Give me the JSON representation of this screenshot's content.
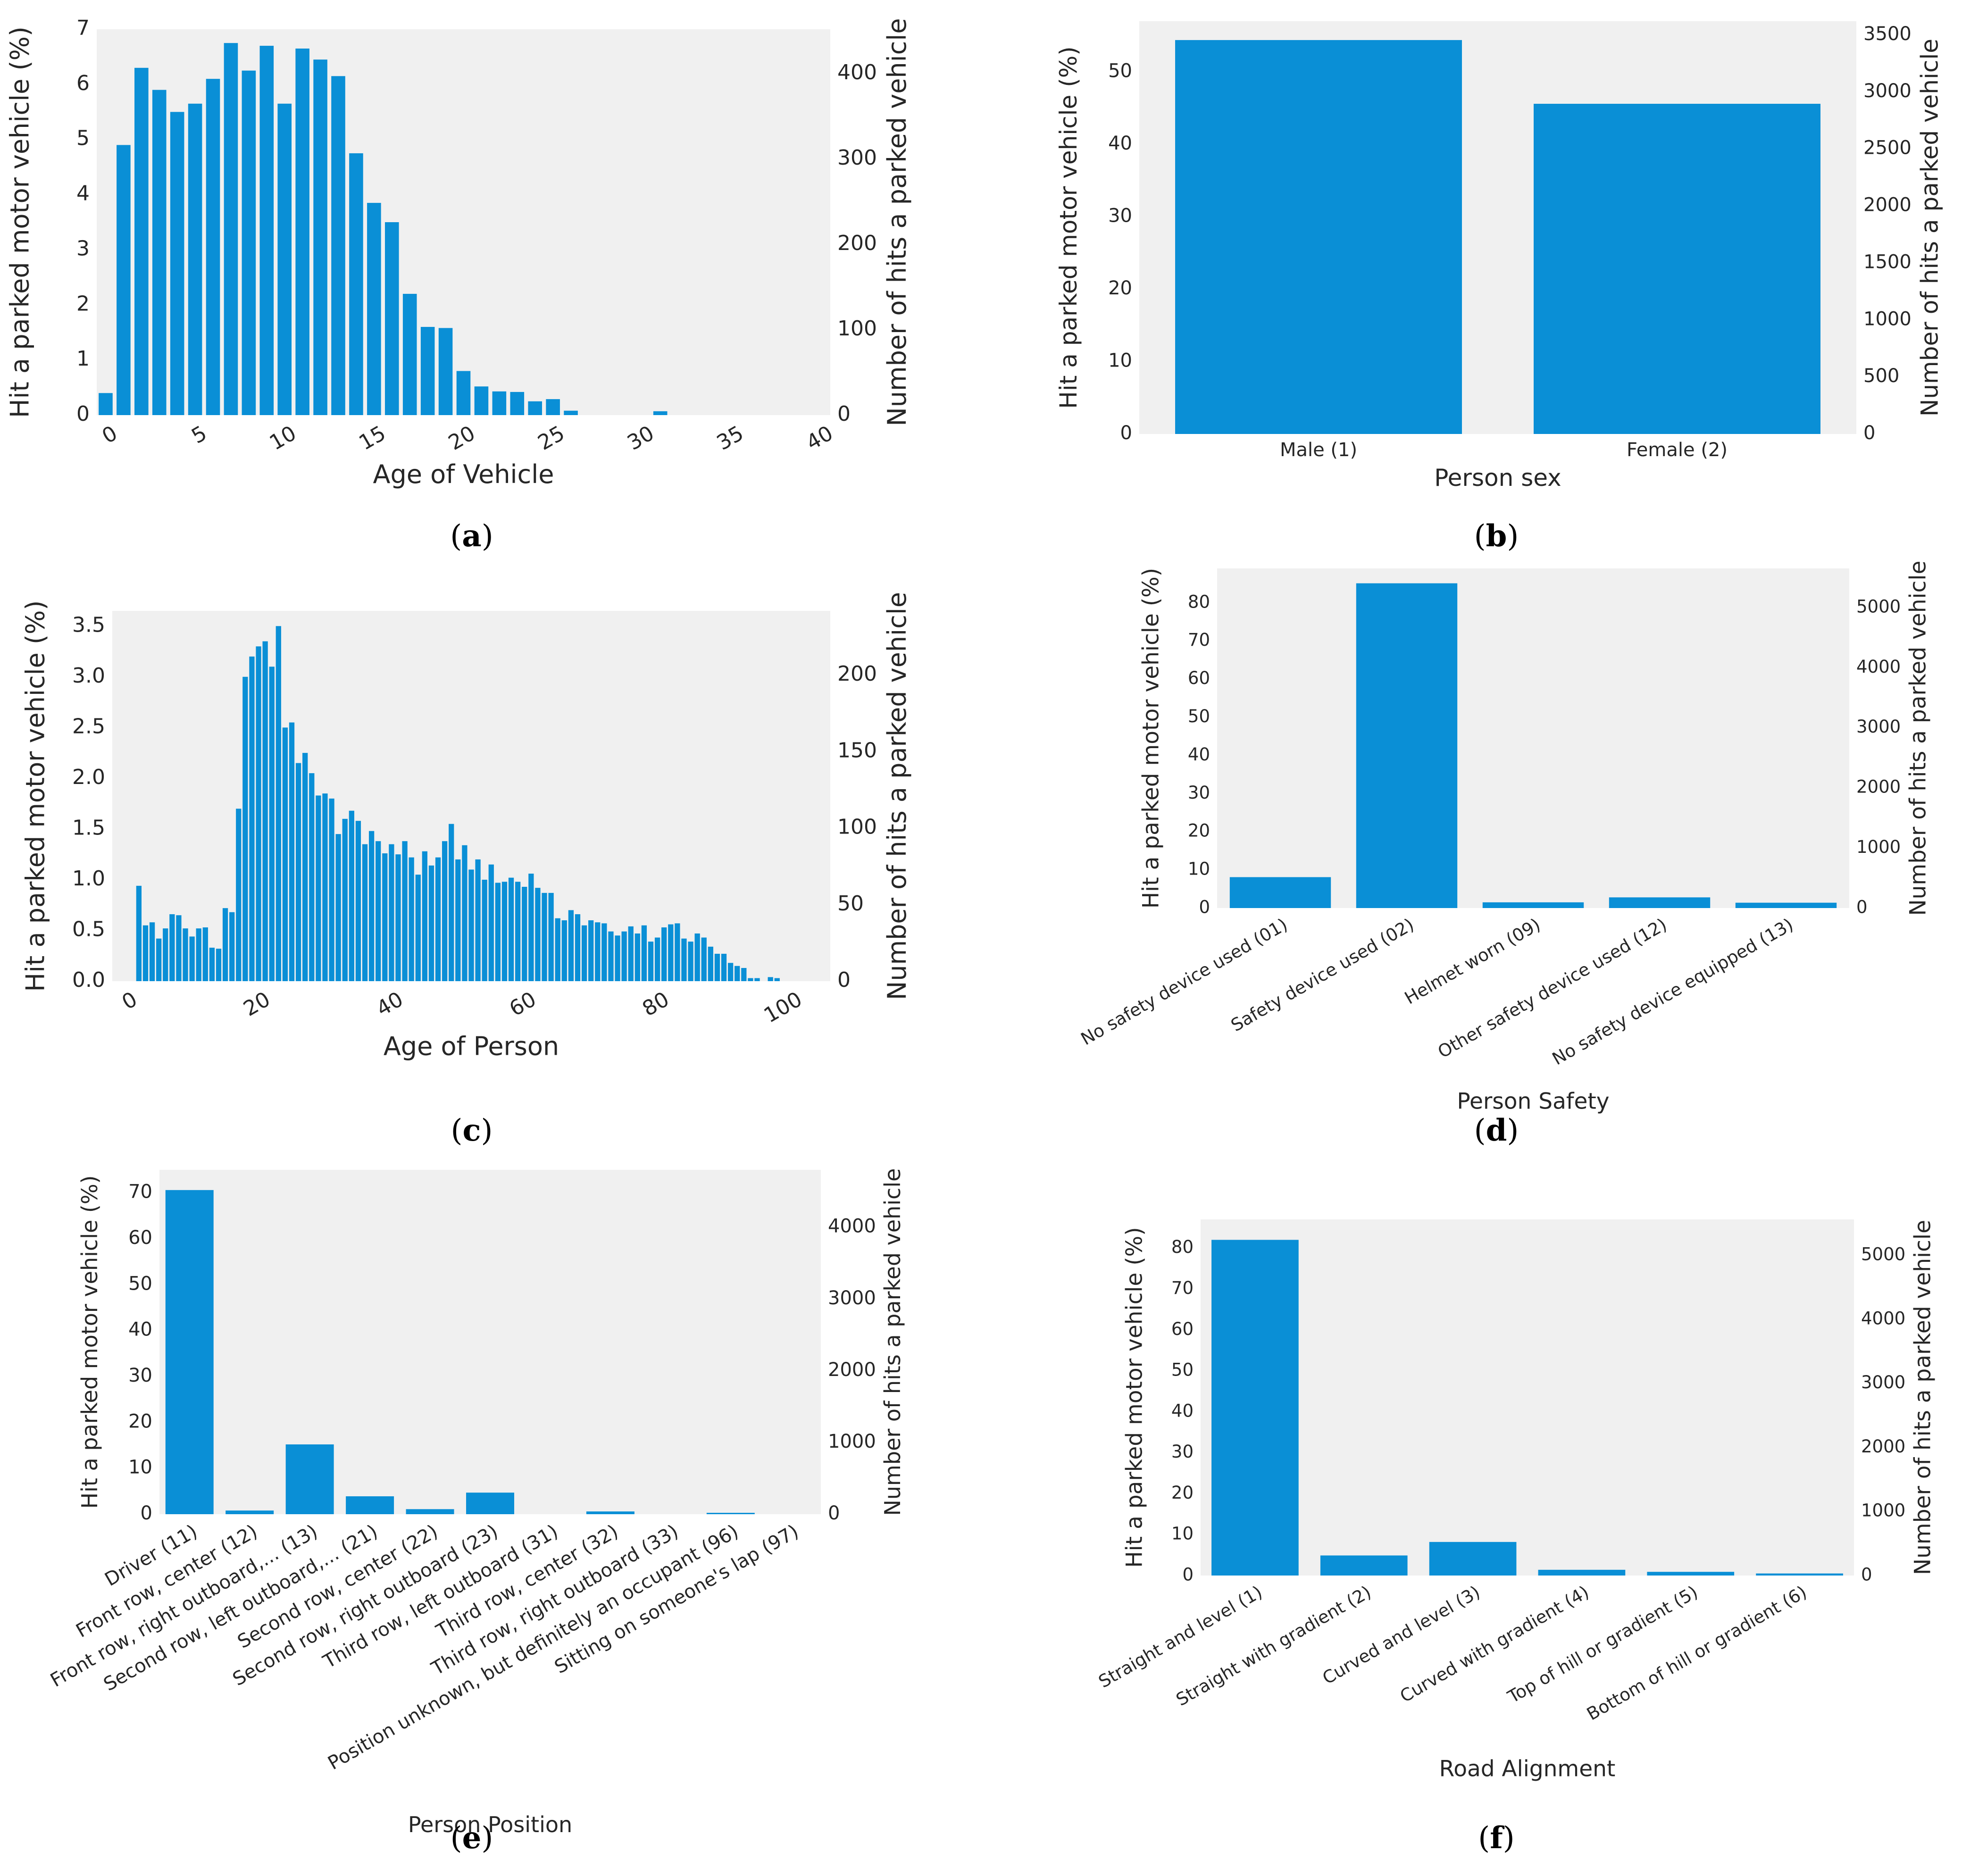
{
  "figure": {
    "bar_color": "#0a8fd6",
    "plot_bg": "#f0f0f0",
    "captions": [
      "a",
      "b",
      "c",
      "d",
      "e",
      "f"
    ]
  },
  "chart_data": [
    {
      "id": "a",
      "type": "bar",
      "xlabel": "Age of Vehicle",
      "ylabel_left": "Hit a parked motor vehicle (%)",
      "ylabel_right": "Number of hits a parked vehicle",
      "x": [
        0,
        1,
        2,
        3,
        4,
        5,
        6,
        7,
        8,
        9,
        10,
        11,
        12,
        13,
        14,
        15,
        16,
        17,
        18,
        19,
        20,
        21,
        22,
        23,
        24,
        25,
        26,
        27,
        28,
        29,
        30,
        31,
        32,
        33,
        34,
        35,
        36,
        37,
        38,
        39,
        40
      ],
      "values": [
        0.4,
        4.9,
        6.3,
        5.9,
        5.5,
        5.65,
        6.1,
        6.75,
        6.25,
        6.7,
        5.65,
        6.65,
        6.45,
        6.15,
        4.75,
        3.85,
        3.5,
        2.2,
        1.6,
        1.58,
        0.8,
        0.52,
        0.43,
        0.42,
        0.25,
        0.29,
        0.08,
        0,
        0,
        0,
        0,
        0.07,
        0,
        0,
        0,
        0,
        0,
        0,
        0,
        0,
        0
      ],
      "xlim": [
        -0.5,
        40.5
      ],
      "ylim": [
        0,
        7
      ],
      "yticks": [
        0,
        1,
        2,
        3,
        4,
        5,
        6,
        7
      ],
      "yticklabels": [
        "0",
        "1",
        "2",
        "3",
        "4",
        "5",
        "6",
        "7"
      ],
      "xticks": [
        0,
        5,
        10,
        15,
        20,
        25,
        30,
        35,
        40
      ],
      "xticklabels": [
        "0",
        "5",
        "10",
        "15",
        "20",
        "25",
        "30",
        "35",
        "40"
      ],
      "right_ticks": [
        0,
        100,
        200,
        300,
        400
      ],
      "right_ticklabels": [
        "0",
        "100",
        "200",
        "300",
        "400"
      ],
      "right_ylim": [
        0,
        452
      ],
      "x_rotation": 30
    },
    {
      "id": "b",
      "type": "bar",
      "xlabel": "Person sex",
      "ylabel_left": "Hit a parked motor vehicle (%)",
      "ylabel_right": "Number of hits a parked vehicle",
      "categories": [
        "Male (1)",
        "Female (2)"
      ],
      "values": [
        54.4,
        45.6
      ],
      "ylim": [
        0,
        57
      ],
      "yticks": [
        0,
        10,
        20,
        30,
        40,
        50
      ],
      "yticklabels": [
        "0",
        "10",
        "20",
        "30",
        "40",
        "50"
      ],
      "right_ticks": [
        0,
        500,
        1000,
        1500,
        2000,
        2500,
        3000,
        3500
      ],
      "right_ticklabels": [
        "0",
        "500",
        "1000",
        "1500",
        "2000",
        "2500",
        "3000",
        "3500"
      ],
      "right_ylim": [
        0,
        3620
      ],
      "x_rotation": 0
    },
    {
      "id": "c",
      "type": "bar",
      "xlabel": "Age of Person",
      "ylabel_left": "Hit a parked motor vehicle (%)",
      "ylabel_right": "Number of hits a parked vehicle",
      "x": [
        2,
        3,
        4,
        5,
        6,
        7,
        8,
        9,
        10,
        11,
        12,
        13,
        14,
        15,
        16,
        17,
        18,
        19,
        20,
        21,
        22,
        23,
        24,
        25,
        26,
        27,
        28,
        29,
        30,
        31,
        32,
        33,
        34,
        35,
        36,
        37,
        38,
        39,
        40,
        41,
        42,
        43,
        44,
        45,
        46,
        47,
        48,
        49,
        50,
        51,
        52,
        53,
        54,
        55,
        56,
        57,
        58,
        59,
        60,
        61,
        62,
        63,
        64,
        65,
        66,
        67,
        68,
        69,
        70,
        71,
        72,
        73,
        74,
        75,
        76,
        77,
        78,
        79,
        80,
        81,
        82,
        83,
        84,
        85,
        86,
        87,
        88,
        89,
        90,
        91,
        92,
        93,
        94,
        95,
        96,
        97,
        98,
        99
      ],
      "values": [
        0.94,
        0.55,
        0.58,
        0.42,
        0.52,
        0.66,
        0.65,
        0.52,
        0.44,
        0.52,
        0.53,
        0.33,
        0.32,
        0.72,
        0.68,
        1.7,
        3.0,
        3.2,
        3.3,
        3.35,
        3.1,
        3.5,
        2.5,
        2.55,
        2.15,
        2.25,
        2.05,
        1.83,
        1.85,
        1.8,
        1.45,
        1.6,
        1.68,
        1.58,
        1.35,
        1.48,
        1.38,
        1.26,
        1.35,
        1.25,
        1.38,
        1.22,
        1.05,
        1.28,
        1.14,
        1.22,
        1.38,
        1.55,
        1.2,
        1.34,
        1.1,
        1.2,
        1.0,
        1.15,
        0.97,
        0.98,
        1.02,
        0.98,
        0.93,
        1.06,
        0.92,
        0.87,
        0.87,
        0.62,
        0.6,
        0.7,
        0.66,
        0.55,
        0.6,
        0.58,
        0.57,
        0.49,
        0.45,
        0.49,
        0.54,
        0.47,
        0.55,
        0.39,
        0.43,
        0.53,
        0.56,
        0.57,
        0.42,
        0.39,
        0.47,
        0.43,
        0.34,
        0.27,
        0.27,
        0.18,
        0.15,
        0.13,
        0.03,
        0.03,
        0,
        0.04,
        0.03,
        0
      ],
      "xlim": [
        -2,
        106
      ],
      "ylim": [
        0,
        3.65
      ],
      "yticks": [
        0,
        0.5,
        1,
        1.5,
        2,
        2.5,
        3,
        3.5
      ],
      "yticklabels": [
        "0.0",
        "0.5",
        "1.0",
        "1.5",
        "2.0",
        "2.5",
        "3.0",
        "3.5"
      ],
      "xticks": [
        0,
        20,
        40,
        60,
        80,
        100
      ],
      "xticklabels": [
        "0",
        "20",
        "40",
        "60",
        "80",
        "100"
      ],
      "right_ticks": [
        0,
        50,
        100,
        150,
        200
      ],
      "right_ticklabels": [
        "0",
        "50",
        "100",
        "150",
        "200"
      ],
      "right_ylim": [
        0,
        242
      ],
      "x_rotation": 30
    },
    {
      "id": "d",
      "type": "bar",
      "xlabel": "Person Safety",
      "ylabel_left": "Hit a parked motor vehicle (%)",
      "ylabel_right": "Number of hits a parked vehicle",
      "categories": [
        "No safety device used (01)",
        "Safety device used (02)",
        "Helmet worn (09)",
        "Other safety device used (12)",
        "No safety device equipped (13)"
      ],
      "values": [
        8.1,
        85.1,
        1.5,
        2.8,
        1.4
      ],
      "ylim": [
        0,
        89
      ],
      "yticks": [
        0,
        10,
        20,
        30,
        40,
        50,
        60,
        70,
        80
      ],
      "yticklabels": [
        "0",
        "10",
        "20",
        "30",
        "40",
        "50",
        "60",
        "70",
        "80"
      ],
      "right_ticks": [
        0,
        1000,
        2000,
        3000,
        4000,
        5000
      ],
      "right_ticklabels": [
        "0",
        "1000",
        "2000",
        "3000",
        "4000",
        "5000"
      ],
      "right_ylim": [
        0,
        5650
      ],
      "x_rotation": 30
    },
    {
      "id": "e",
      "type": "bar",
      "xlabel": "Person Position",
      "ylabel_left": "Hit a parked motor vehicle (%)",
      "ylabel_right": "Number of hits a parked vehicle",
      "categories": [
        "Driver (11)",
        "Front row, center (12)",
        "Front row, right outboard,... (13)",
        "Second row, left outboard,... (21)",
        "Second row, center (22)",
        "Second row, right outboard (23)",
        "Third row, left outboard (31)",
        "Third row, center (32)",
        "Third row, right outboard (33)",
        "Position unknown, but definitely an occupant (96)",
        "Sitting on someone's lap (97)"
      ],
      "values": [
        70.6,
        0.8,
        15.2,
        3.9,
        1.1,
        4.7,
        0,
        0.6,
        0,
        0.3,
        0
      ],
      "ylim": [
        0,
        75
      ],
      "yticks": [
        0,
        10,
        20,
        30,
        40,
        50,
        60,
        70
      ],
      "yticklabels": [
        "0",
        "10",
        "20",
        "30",
        "40",
        "50",
        "60",
        "70"
      ],
      "right_ticks": [
        0,
        1000,
        2000,
        3000,
        4000
      ],
      "right_ticklabels": [
        "0",
        "1000",
        "2000",
        "3000",
        "4000"
      ],
      "right_ylim": [
        0,
        4800
      ],
      "x_rotation": 30
    },
    {
      "id": "f",
      "type": "bar",
      "xlabel": "Road Alignment",
      "ylabel_left": "Hit a parked motor vehicle (%)",
      "ylabel_right": "Number of hits a parked vehicle",
      "categories": [
        "Straight and level (1)",
        "Straight with gradient (2)",
        "Curved and level (3)",
        "Curved with gradient (4)",
        "Top of hill or gradient (5)",
        "Bottom of hill or gradient (6)"
      ],
      "values": [
        82.0,
        4.9,
        8.2,
        1.4,
        0.9,
        0.5
      ],
      "ylim": [
        0,
        87
      ],
      "yticks": [
        0,
        10,
        20,
        30,
        40,
        50,
        60,
        70,
        80
      ],
      "yticklabels": [
        "0",
        "10",
        "20",
        "30",
        "40",
        "50",
        "60",
        "70",
        "80"
      ],
      "right_ticks": [
        0,
        1000,
        2000,
        3000,
        4000,
        5000
      ],
      "right_ticklabels": [
        "0",
        "1000",
        "2000",
        "3000",
        "4000",
        "5000"
      ],
      "right_ylim": [
        0,
        5560
      ],
      "x_rotation": 30
    }
  ]
}
